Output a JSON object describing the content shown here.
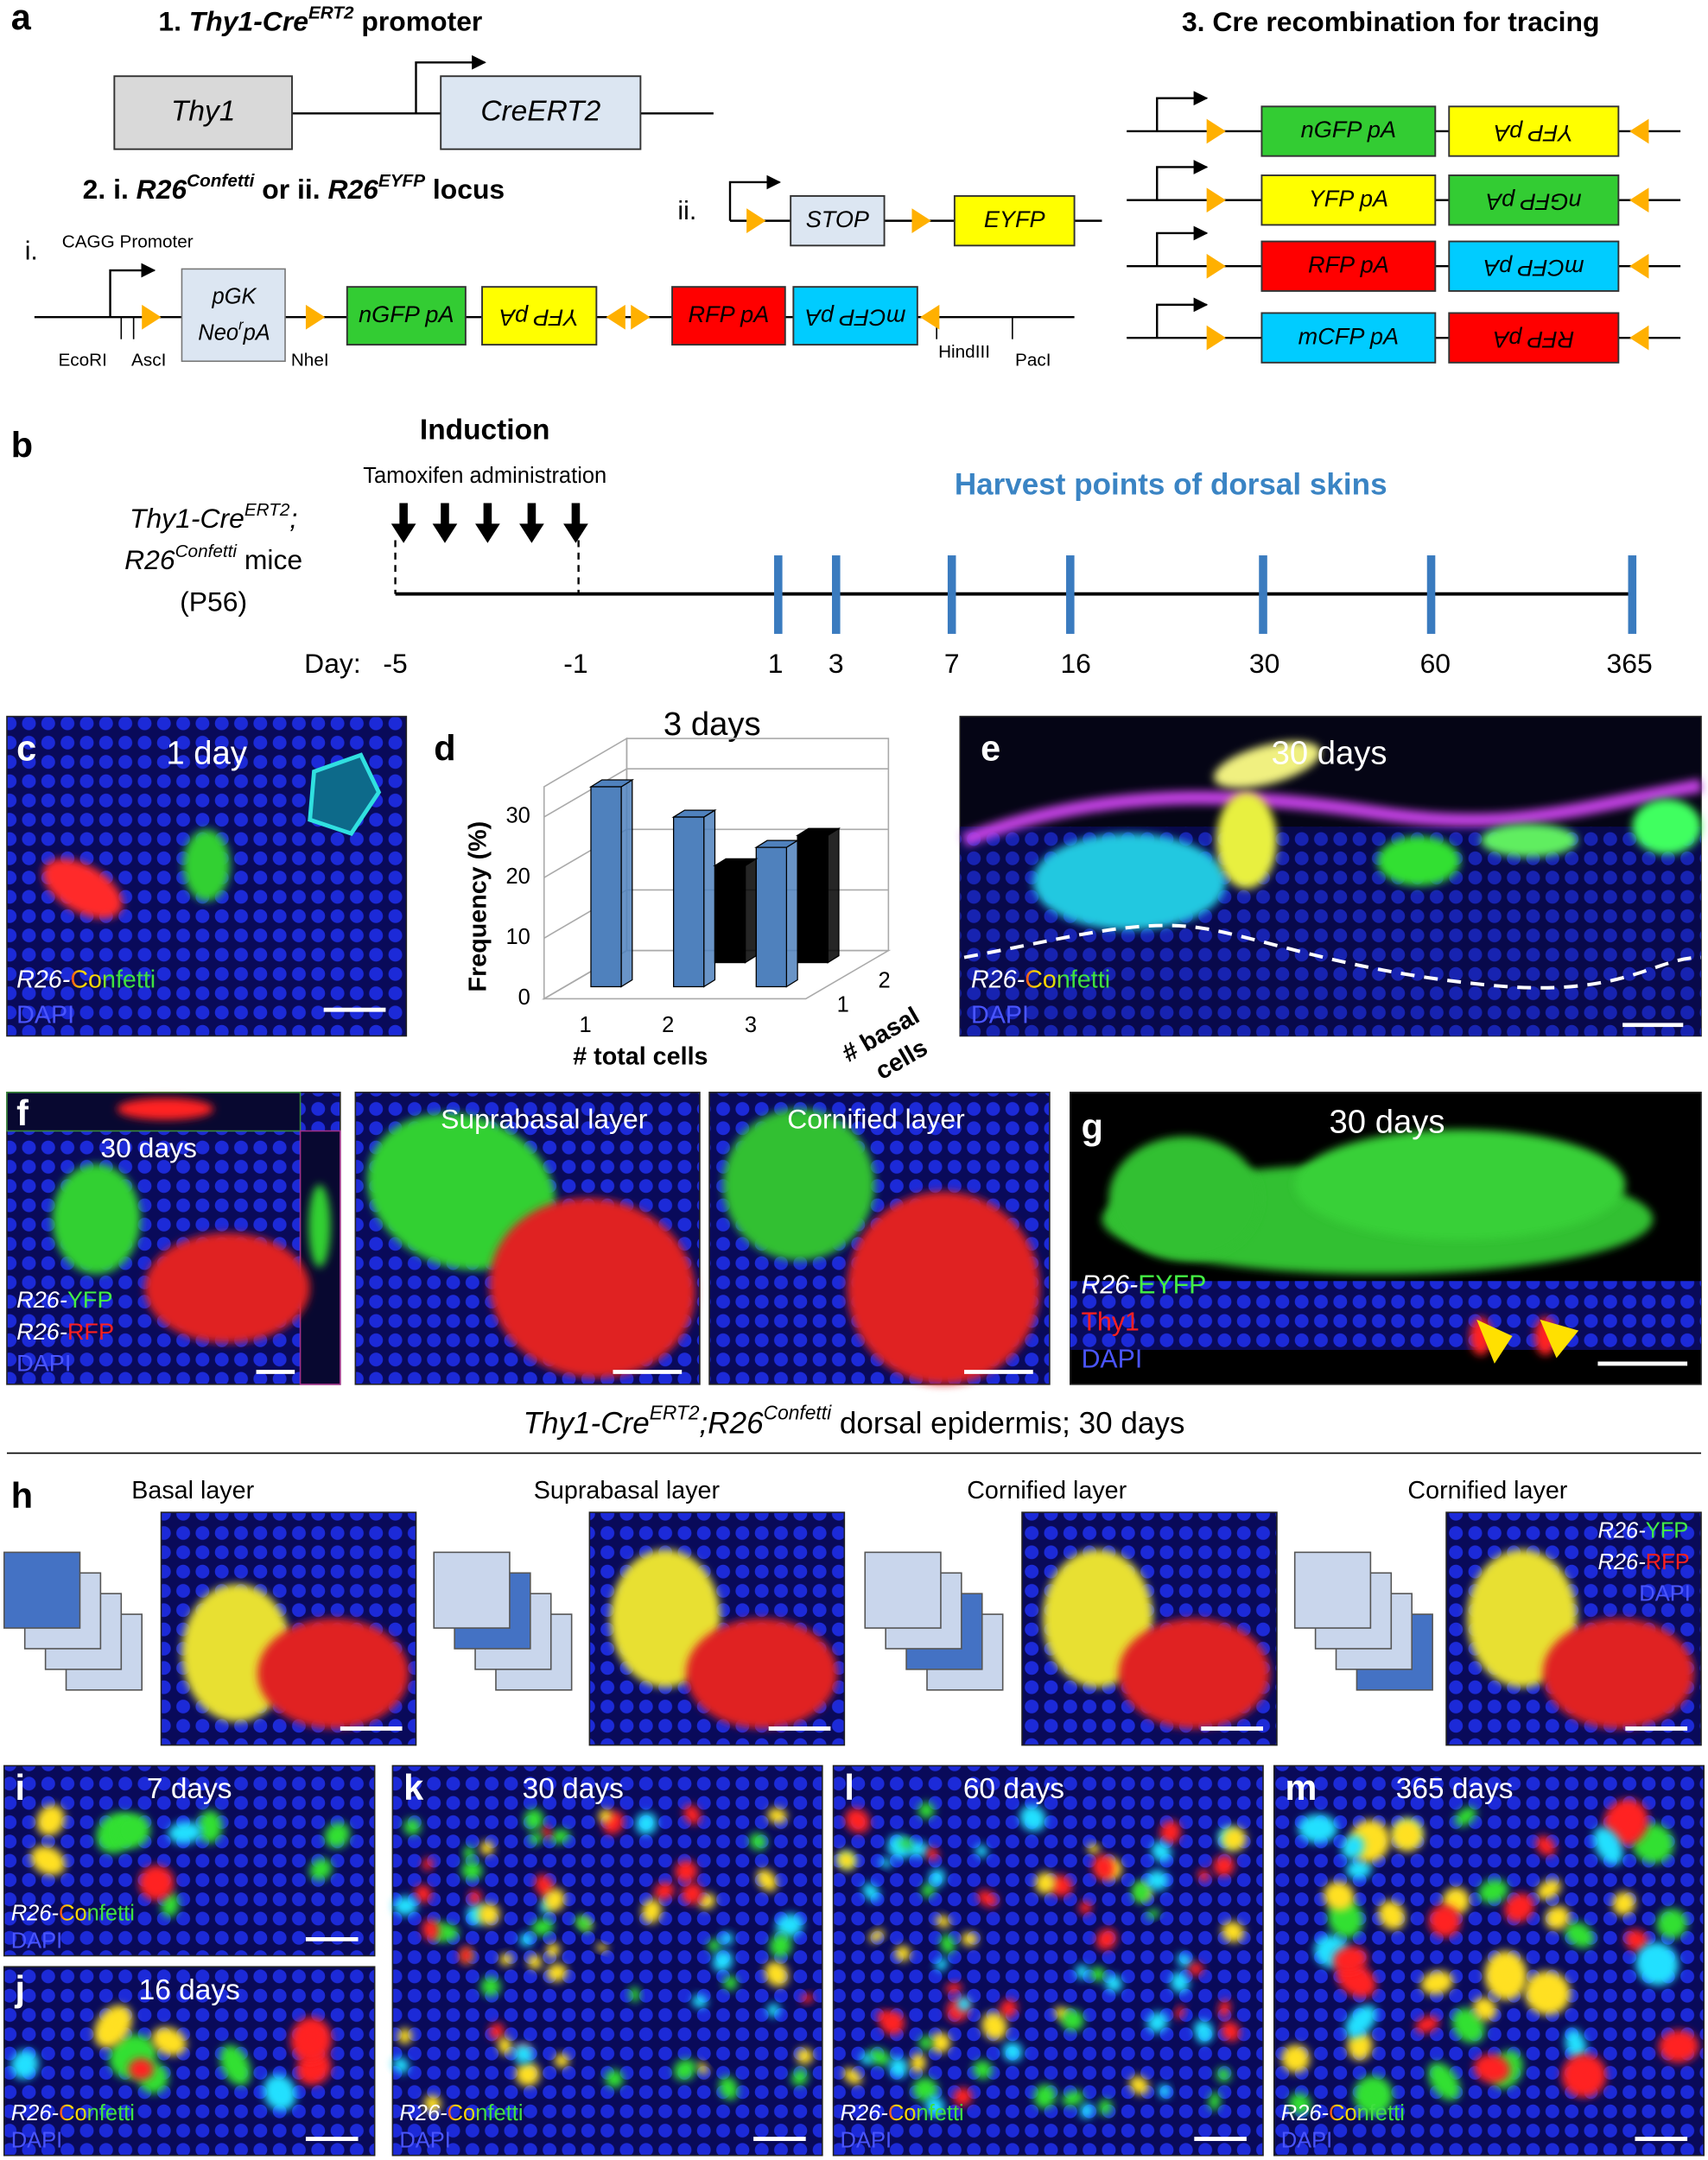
{
  "a": {
    "label": "a",
    "title1": [
      "1. ",
      "Thy1-Cre",
      "ERT2",
      " promoter"
    ],
    "box_thy1": "Thy1",
    "box_cre": "CreERT2",
    "title2": [
      "2. i. ",
      "R26",
      "Confetti",
      " or ii. ",
      "R26",
      "EYFP",
      " locus"
    ],
    "i": "i.",
    "ii": "ii.",
    "cagg": "CAGG Promoter",
    "pgk_line1": "pGK",
    "pgk_line2": [
      "Neo",
      "r",
      "pA"
    ],
    "cassettes": [
      "nGFP pA",
      "YFP pA",
      "RFP pA",
      "mCFP pA"
    ],
    "sites": [
      "EcoRI",
      "AscI",
      "NheI",
      "HindIII",
      "PacI"
    ],
    "stop": "STOP",
    "eyfp": "EYFP",
    "title3": "3. Cre recombination for tracing",
    "rows": [
      [
        "nGFP pA",
        "YFP pA"
      ],
      [
        "YFP pA",
        "nGFP pA"
      ],
      [
        "RFP pA",
        "mCFP pA"
      ],
      [
        "mCFP pA",
        "RFP pA"
      ]
    ]
  },
  "b": {
    "label": "b",
    "induction": "Induction",
    "tamoxifen": "Tamoxifen administration",
    "mouse1": [
      "Thy1-Cre",
      "ERT2",
      ";"
    ],
    "mouse2": [
      "R26",
      "Confetti",
      " mice"
    ],
    "mouse3": "(P56)",
    "harvest": "Harvest points of dorsal skins",
    "day_label": "Day:",
    "days": [
      -5,
      -1,
      1,
      3,
      7,
      16,
      30,
      60,
      365
    ]
  },
  "c": {
    "label": "c",
    "time": "1 day",
    "legend": [
      "R26-",
      "Confetti"
    ],
    "dapi": "DAPI"
  },
  "d": {
    "label": "d",
    "type": "bar3d",
    "title": "3 days",
    "y_label": "Frequency (%)",
    "x_label": "# total cells",
    "z_label": [
      "# basal",
      "cells"
    ],
    "categories": [
      1,
      2,
      3
    ],
    "series": [
      {
        "name": 1,
        "color": "#4f81bd",
        "values": [
          33,
          28,
          23
        ]
      },
      {
        "name": 2,
        "color": "#000000",
        "values": [
          null,
          16,
          21
        ]
      }
    ],
    "ylim": [
      0,
      35
    ],
    "yticks": [
      0,
      10,
      20,
      30
    ]
  },
  "e": {
    "label": "e",
    "time": "30 days",
    "legend": [
      "R26-",
      "Confetti"
    ],
    "dapi": "DAPI"
  },
  "f": {
    "label": "f",
    "time": "30 days",
    "suprabasal": "Suprabasal layer",
    "cornified": "Cornified layer",
    "legend_yfp": [
      "R26-",
      "YFP"
    ],
    "legend_rfp": [
      "R26-",
      "RFP"
    ],
    "dapi": "DAPI"
  },
  "g": {
    "label": "g",
    "time": "30 days",
    "legend": [
      "R26-",
      "EYFP"
    ],
    "thy1": "Thy1",
    "dapi": "DAPI"
  },
  "caption": [
    "Thy1-Cre",
    "ERT2",
    ";R26",
    "Confetti",
    " dorsal epidermis; 30 days"
  ],
  "h": {
    "label": "h",
    "layers": [
      "Basal layer",
      "Suprabasal layer",
      "Cornified layer",
      "Cornified layer"
    ],
    "legend_yfp": [
      "R26-",
      "YFP"
    ],
    "legend_rfp": [
      "R26-",
      "RFP"
    ],
    "dapi": "DAPI"
  },
  "i": {
    "label": "i",
    "time": "7 days",
    "legend": [
      "R26-",
      "Confetti"
    ],
    "dapi": "DAPI"
  },
  "j": {
    "label": "j",
    "time": "16 days",
    "legend": [
      "R26-",
      "Confetti"
    ],
    "dapi": "DAPI"
  },
  "k": {
    "label": "k",
    "time": "30 days",
    "legend": [
      "R26-",
      "Confetti"
    ],
    "dapi": "DAPI"
  },
  "l": {
    "label": "l",
    "time": "60 days",
    "legend": [
      "R26-",
      "Confetti"
    ],
    "dapi": "DAPI"
  },
  "m": {
    "label": "m",
    "time": "365 days",
    "legend": [
      "R26-",
      "Confetti"
    ],
    "dapi": "DAPI"
  }
}
